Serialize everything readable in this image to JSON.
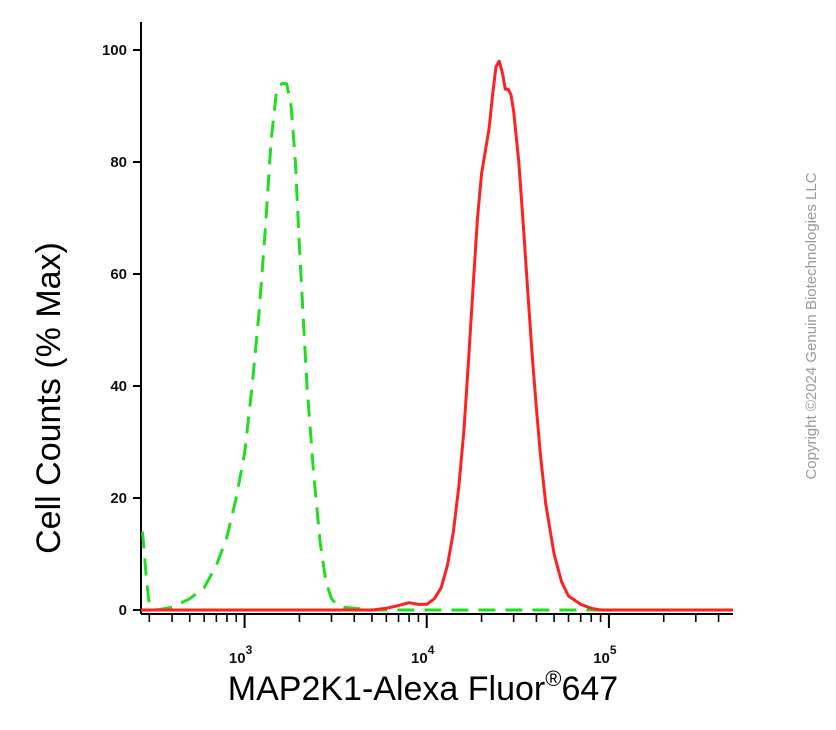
{
  "chart_data": {
    "type": "line",
    "title": "",
    "xlabel": "MAP2K1-Alexa Fluor",
    "xlabel_superscript": "®",
    "xlabel_suffix": "647",
    "ylabel": "Cell Counts (% Max)",
    "x_scale": "log",
    "xlim": [
      270,
      480000
    ],
    "ylim": [
      0,
      100
    ],
    "yticks": [
      0,
      20,
      40,
      60,
      80,
      100
    ],
    "ytick_labels": [
      "0",
      "20",
      "40",
      "60",
      "80",
      "100"
    ],
    "xticks": [
      1000,
      10000,
      100000
    ],
    "xtick_labels": [
      {
        "base": "10",
        "exp": "3"
      },
      {
        "base": "10",
        "exp": "4"
      },
      {
        "base": "10",
        "exp": "5"
      }
    ],
    "grid": false,
    "legend": "none",
    "series": [
      {
        "color": "#22dd22",
        "style": "dashed",
        "x": [
          275,
          290,
          300,
          330,
          400,
          500,
          600,
          700,
          800,
          900,
          1000,
          1100,
          1200,
          1300,
          1400,
          1500,
          1600,
          1700,
          1800,
          1900,
          2000,
          2100,
          2200,
          2400,
          2600,
          2800,
          3000,
          3200,
          3500,
          4000,
          5000,
          8000,
          20000,
          100000,
          480000
        ],
        "y": [
          14,
          5,
          1,
          0,
          0.5,
          2,
          4,
          8,
          13,
          20,
          28,
          40,
          53,
          68,
          84,
          93,
          94,
          94,
          90,
          80,
          65,
          52,
          40,
          24,
          12,
          5,
          2,
          1,
          0.5,
          0.3,
          0,
          0,
          0,
          0,
          0
        ]
      },
      {
        "color": "#ff2222",
        "style": "solid",
        "x": [
          270,
          5000,
          6000,
          7000,
          8000,
          9000,
          10000,
          11000,
          12000,
          13000,
          14000,
          15000,
          16000,
          17000,
          18000,
          19000,
          20000,
          21000,
          22000,
          23000,
          24000,
          25000,
          26000,
          27000,
          28000,
          29000,
          30000,
          32000,
          34000,
          36000,
          38000,
          40000,
          42000,
          45000,
          50000,
          55000,
          60000,
          70000,
          80000,
          90000,
          100000,
          480000
        ],
        "y": [
          0,
          0,
          0.3,
          0.8,
          1.3,
          1,
          1,
          2,
          4,
          8,
          14,
          22,
          32,
          45,
          58,
          70,
          78,
          82,
          86,
          92,
          97,
          98,
          96,
          93,
          93,
          92,
          89,
          80,
          68,
          56,
          45,
          36,
          28,
          19,
          10,
          5,
          2.5,
          1,
          0.3,
          0,
          0,
          0
        ]
      }
    ]
  },
  "copyright": "Copyright ©2024 Genuin Biotechnologies LLC"
}
